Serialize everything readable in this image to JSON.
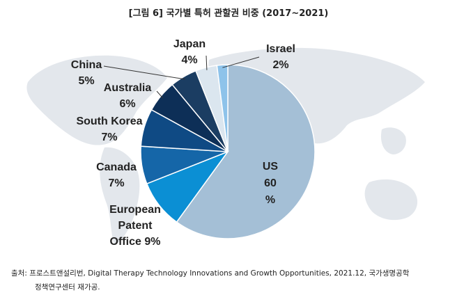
{
  "title": "[그림 6] 국가별 특허 관할권 비중 (2017~2021)",
  "source_line1": "출처: 프로스트앤설리번, Digital Therapy Technology Innovations and Growth Opportunities, 2021.12, 국가생명공학",
  "source_line2": "정책연구센터 재가공.",
  "chart_data": {
    "type": "pie",
    "title": "[그림 6] 국가별 특허 관할권 비중 (2017~2021)",
    "slices": [
      {
        "label": "US",
        "value": 60,
        "label_text": "US|60|%",
        "color": "#a4bfd6"
      },
      {
        "label": "European Patent Office",
        "value": 9,
        "label_text": "European|Patent|Office 9%",
        "color": "#0b8fd4"
      },
      {
        "label": "Canada",
        "value": 7,
        "label_text": "Canada|7%",
        "color": "#1566a8"
      },
      {
        "label": "South Korea",
        "value": 7,
        "label_text": "South Korea|7%",
        "color": "#0f4a84"
      },
      {
        "label": "Australia",
        "value": 6,
        "label_text": "Australia|6%",
        "color": "#0d2f57"
      },
      {
        "label": "China",
        "value": 5,
        "label_text": "China|5%",
        "color": "#1b3d62"
      },
      {
        "label": "Japan",
        "value": 4,
        "label_text": "Japan|4%",
        "color": "#dbe6ef"
      },
      {
        "label": "Israel",
        "value": 2,
        "label_text": "Israel|2%",
        "color": "#8ec3ea"
      }
    ]
  }
}
